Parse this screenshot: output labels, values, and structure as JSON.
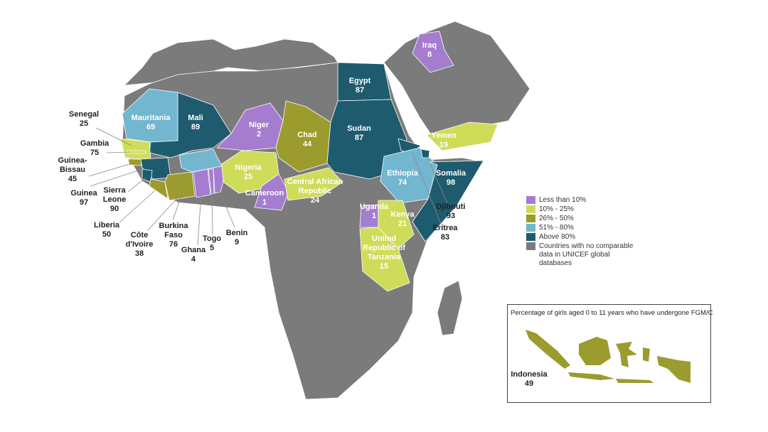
{
  "colors": {
    "less_than_10": "#a57dcf",
    "10_25": "#cfdc5a",
    "26_50": "#9c9b2e",
    "51_80": "#72b6d0",
    "above_80": "#1f5b6e",
    "no_data": "#7b7b7b"
  },
  "legend": [
    {
      "label": "Less than 10%",
      "color": "#a57dcf"
    },
    {
      "label": "10% - 25%",
      "color": "#cfdc5a"
    },
    {
      "label": "26% - 50%",
      "color": "#9c9b2e"
    },
    {
      "label": "51% - 80%",
      "color": "#72b6d0"
    },
    {
      "label": "Above 80%",
      "color": "#1f5b6e"
    },
    {
      "label": "Countries with no comparable data in UNICEF global databases",
      "color": "#7b7b7b"
    }
  ],
  "countries": {
    "iraq": {
      "name": "Iraq",
      "value": "8"
    },
    "egypt": {
      "name": "Egypt",
      "value": "87"
    },
    "mauritania": {
      "name": "Mauritania",
      "value": "69"
    },
    "mali": {
      "name": "Mali",
      "value": "89"
    },
    "niger": {
      "name": "Niger",
      "value": "2"
    },
    "chad": {
      "name": "Chad",
      "value": "44"
    },
    "sudan": {
      "name": "Sudan",
      "value": "87"
    },
    "yemen": {
      "name": "Yemen",
      "value": "19"
    },
    "nigeria": {
      "name": "Nigeria",
      "value": "25"
    },
    "car": {
      "name": "Central African Republic",
      "value": "24"
    },
    "ethiopia": {
      "name": "Ethiopia",
      "value": "74"
    },
    "somalia": {
      "name": "Somalia",
      "value": "98"
    },
    "cameroon": {
      "name": "Cameroon",
      "value": "1"
    },
    "uganda": {
      "name": "Uganda",
      "value": "1"
    },
    "kenya": {
      "name": "Kenya",
      "value": "21"
    },
    "tanzania": {
      "name": "United Republic of Tanzania",
      "value": "15"
    },
    "djibouti": {
      "name": "Djibouti",
      "value": "93"
    },
    "eritrea": {
      "name": "Eritrea",
      "value": "83"
    },
    "senegal": {
      "name": "Senegal",
      "value": "25"
    },
    "gambia": {
      "name": "Gambia",
      "value": "75"
    },
    "guinea_bissau": {
      "name": "Guinea-Bissau",
      "value": "45"
    },
    "guinea": {
      "name": "Guinea",
      "value": "97"
    },
    "sierra_leone": {
      "name": "Sierra Leone",
      "value": "90"
    },
    "liberia": {
      "name": "Liberia",
      "value": "50"
    },
    "cote_divoire": {
      "name": "Côte d'Ivoire",
      "value": "38"
    },
    "burkina_faso": {
      "name": "Burkina Faso",
      "value": "76"
    },
    "ghana": {
      "name": "Ghana",
      "value": "4"
    },
    "togo": {
      "name": "Togo",
      "value": "5"
    },
    "benin": {
      "name": "Benin",
      "value": "9"
    }
  },
  "inset": {
    "title": "Percentage of girls aged 0 to 11 years who have undergone FGM/C",
    "country": "Indonesia",
    "value": "49"
  }
}
